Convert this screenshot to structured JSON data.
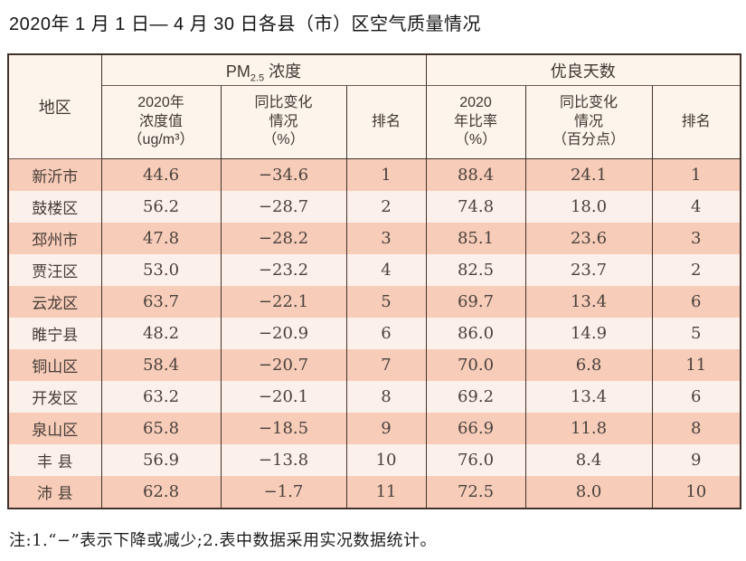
{
  "title": "2020年 1 月 1 日— 4 月 30 日各县（市）区空气质量情况",
  "table": {
    "group_headers": {
      "region": "地区",
      "pm25": {
        "prefix": "PM",
        "sub": "2.5",
        "suffix": " 浓度"
      },
      "good_days": "优良天数"
    },
    "sub_headers": {
      "pm_value": "2020年\n浓度值\n（ug/m³）",
      "pm_change": "同比变化\n情况\n（%）",
      "pm_rank": "排名",
      "gd_ratio": "2020\n年比率\n（%）",
      "gd_change": "同比变化\n情况\n（百分点）",
      "gd_rank": "排名"
    },
    "rows": [
      {
        "region": "新沂市",
        "pm_value": "44.6",
        "pm_change": "−34.6",
        "pm_rank": "1",
        "gd_ratio": "88.4",
        "gd_change": "24.1",
        "gd_rank": "1"
      },
      {
        "region": "鼓楼区",
        "pm_value": "56.2",
        "pm_change": "−28.7",
        "pm_rank": "2",
        "gd_ratio": "74.8",
        "gd_change": "18.0",
        "gd_rank": "4"
      },
      {
        "region": "邳州市",
        "pm_value": "47.8",
        "pm_change": "−28.2",
        "pm_rank": "3",
        "gd_ratio": "85.1",
        "gd_change": "23.6",
        "gd_rank": "3"
      },
      {
        "region": "贾汪区",
        "pm_value": "53.0",
        "pm_change": "−23.2",
        "pm_rank": "4",
        "gd_ratio": "82.5",
        "gd_change": "23.7",
        "gd_rank": "2"
      },
      {
        "region": "云龙区",
        "pm_value": "63.7",
        "pm_change": "−22.1",
        "pm_rank": "5",
        "gd_ratio": "69.7",
        "gd_change": "13.4",
        "gd_rank": "6"
      },
      {
        "region": "睢宁县",
        "pm_value": "48.2",
        "pm_change": "−20.9",
        "pm_rank": "6",
        "gd_ratio": "86.0",
        "gd_change": "14.9",
        "gd_rank": "5"
      },
      {
        "region": "铜山区",
        "pm_value": "58.4",
        "pm_change": "−20.7",
        "pm_rank": "7",
        "gd_ratio": "70.0",
        "gd_change": "6.8",
        "gd_rank": "11"
      },
      {
        "region": "开发区",
        "pm_value": "63.2",
        "pm_change": "−20.1",
        "pm_rank": "8",
        "gd_ratio": "69.2",
        "gd_change": "13.4",
        "gd_rank": "6"
      },
      {
        "region": "泉山区",
        "pm_value": "65.8",
        "pm_change": "−18.5",
        "pm_rank": "9",
        "gd_ratio": "66.9",
        "gd_change": "11.8",
        "gd_rank": "8"
      },
      {
        "region": "丰 县",
        "pm_value": "56.9",
        "pm_change": "−13.8",
        "pm_rank": "10",
        "gd_ratio": "76.0",
        "gd_change": "8.4",
        "gd_rank": "9"
      },
      {
        "region": "沛 县",
        "pm_value": "62.8",
        "pm_change": "−1.7",
        "pm_rank": "11",
        "gd_ratio": "72.5",
        "gd_change": "8.0",
        "gd_rank": "10"
      }
    ]
  },
  "footnote": "注:1.“−”表示下降或减少;2.表中数据采用实况数据统计。",
  "colors": {
    "row_salmon": "#f7ccb8",
    "row_light": "#fcf1ea",
    "header_bg": "#fdf4ec",
    "border": "#41322c",
    "text": "#4a423e"
  }
}
